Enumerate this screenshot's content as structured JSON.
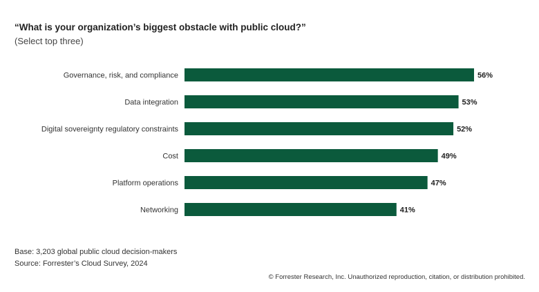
{
  "chart_data": {
    "type": "bar",
    "orientation": "horizontal",
    "title": "“What is your organization’s biggest obstacle with public cloud?”",
    "subtitle": "(Select top three)",
    "categories": [
      "Governance, risk, and compliance",
      "Data integration",
      "Digital sovereignty regulatory constraints",
      "Cost",
      "Platform operations",
      "Networking"
    ],
    "values": [
      56,
      53,
      52,
      49,
      47,
      41
    ],
    "value_labels": [
      "56%",
      "53%",
      "52%",
      "49%",
      "47%",
      "41%"
    ],
    "xlim": [
      0,
      56
    ],
    "grid": false,
    "bar_color": "#0b5a3c"
  },
  "footer": {
    "base": "Base: 3,203 global public cloud decision-makers",
    "source": "Source: Forrester’s Cloud Survey, 2024",
    "copyright": "© Forrester Research, Inc. Unauthorized reproduction, citation, or distribution prohibited."
  }
}
